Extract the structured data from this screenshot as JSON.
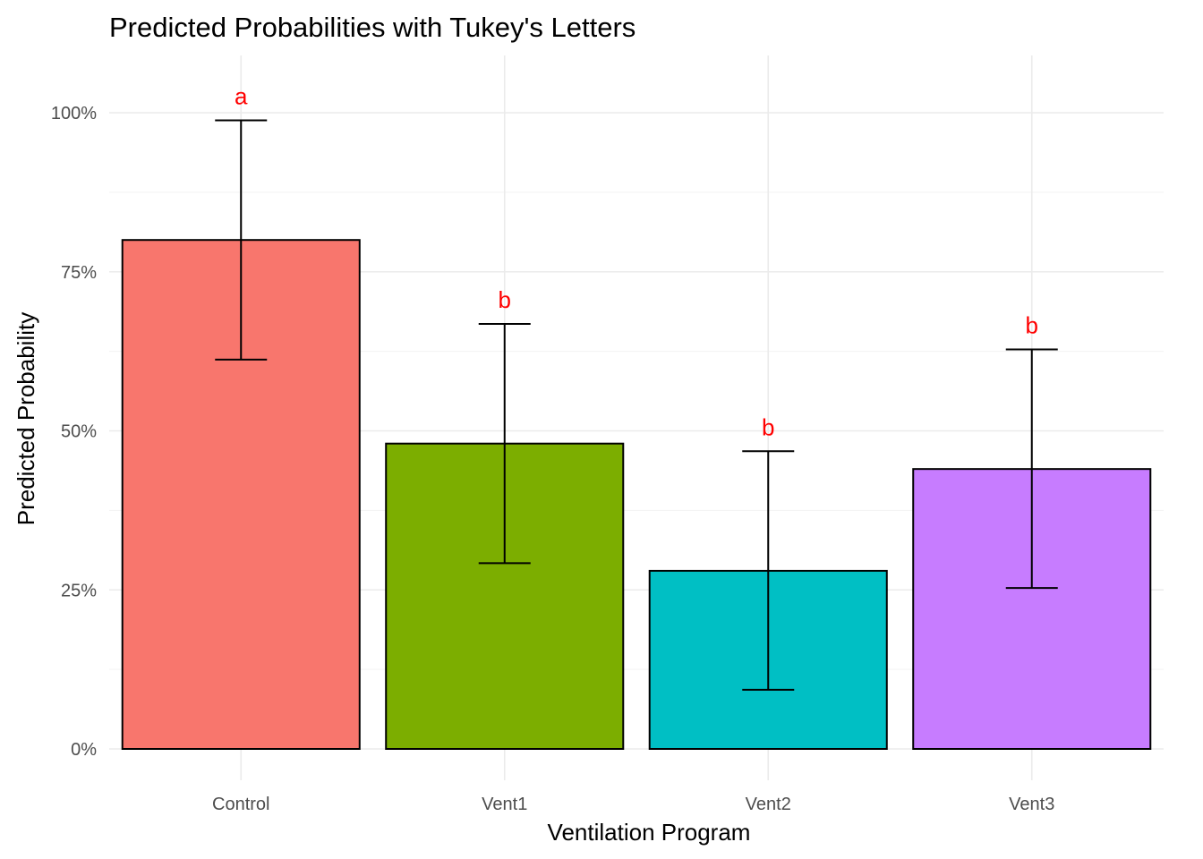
{
  "chart_data": {
    "type": "bar",
    "title": "Predicted Probabilities with Tukey's Letters",
    "xlabel": "Ventilation Program",
    "ylabel": "Predicted Probability",
    "categories": [
      "Control",
      "Vent1",
      "Vent2",
      "Vent3"
    ],
    "values": [
      0.8,
      0.48,
      0.28,
      0.44
    ],
    "ci_lower": [
      0.612,
      0.292,
      0.093,
      0.253
    ],
    "ci_upper": [
      0.988,
      0.668,
      0.468,
      0.628
    ],
    "letters": [
      "a",
      "b",
      "b",
      "b"
    ],
    "colors": [
      "#F8766D",
      "#7CAE00",
      "#00BFC4",
      "#C77CFF"
    ],
    "letter_color": "#FF0000",
    "ylim": [
      0,
      1.0
    ],
    "yticks": [
      0,
      0.25,
      0.5,
      0.75,
      1.0
    ],
    "ytick_labels": [
      "0%",
      "25%",
      "50%",
      "75%",
      "100%"
    ],
    "grid": true,
    "legend": "none"
  }
}
